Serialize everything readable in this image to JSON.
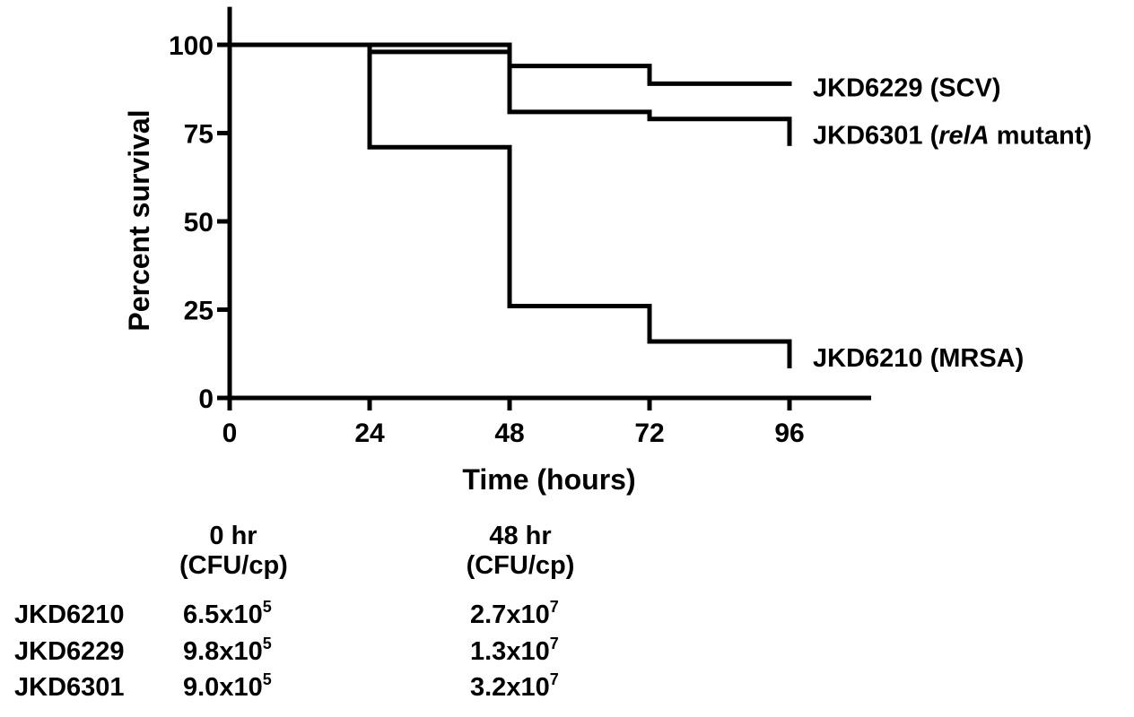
{
  "chart_data": {
    "type": "line",
    "subtype": "kaplan-meier step",
    "xlabel": "Time (hours)",
    "ylabel": "Percent survival",
    "xlim": [
      0,
      110
    ],
    "ylim": [
      0,
      110
    ],
    "xticks": [
      0,
      24,
      48,
      72,
      96
    ],
    "yticks": [
      0,
      25,
      50,
      75,
      100
    ],
    "grid": false,
    "series": [
      {
        "name": "JKD6229 (SCV)",
        "label_parts": [
          {
            "text": "JKD6229 (SCV)",
            "italic": false
          }
        ],
        "x": [
          0,
          24,
          48,
          72,
          96
        ],
        "y": [
          100,
          100,
          94,
          89,
          89
        ]
      },
      {
        "name": "JKD6301 (relA mutant)",
        "label_parts": [
          {
            "text": "JKD6301 (",
            "italic": false
          },
          {
            "text": "relA",
            "italic": true
          },
          {
            "text": " mutant)",
            "italic": false
          }
        ],
        "x": [
          0,
          24,
          48,
          72,
          96
        ],
        "y": [
          100,
          98,
          81,
          79,
          72
        ]
      },
      {
        "name": "JKD6210 (MRSA)",
        "label_parts": [
          {
            "text": "JKD6210 (MRSA)",
            "italic": false
          }
        ],
        "x": [
          0,
          24,
          48,
          72,
          96
        ],
        "y": [
          100,
          71,
          26,
          16,
          9
        ]
      }
    ]
  },
  "table": {
    "col0": {
      "line1": "0 hr",
      "line2": "(CFU/cp)"
    },
    "col1": {
      "line1": "48 hr",
      "line2": "(CFU/cp)"
    },
    "rows": [
      {
        "strain": "JKD6210",
        "v0": "6.5x10",
        "e0": "5",
        "v1": "2.7x10",
        "e1": "7"
      },
      {
        "strain": "JKD6229",
        "v0": "9.8x10",
        "e0": "5",
        "v1": "1.3x10",
        "e1": "7"
      },
      {
        "strain": "JKD6301",
        "v0": "9.0x10",
        "e0": "5",
        "v1": "3.2x10",
        "e1": "7"
      }
    ]
  }
}
